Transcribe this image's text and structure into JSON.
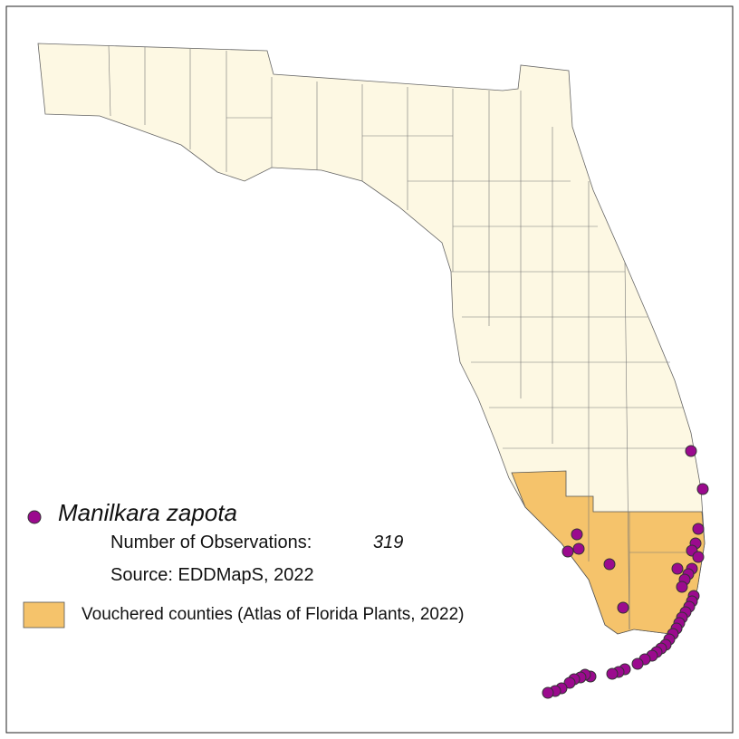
{
  "legend": {
    "species": "Manilkara zapota",
    "observations_label": "Number of Observations:",
    "observations_count": "319",
    "source": "Source: EDDMapS, 2022",
    "vouchered": "Vouchered counties (Atlas of Florida Plants, 2022)"
  }
}
